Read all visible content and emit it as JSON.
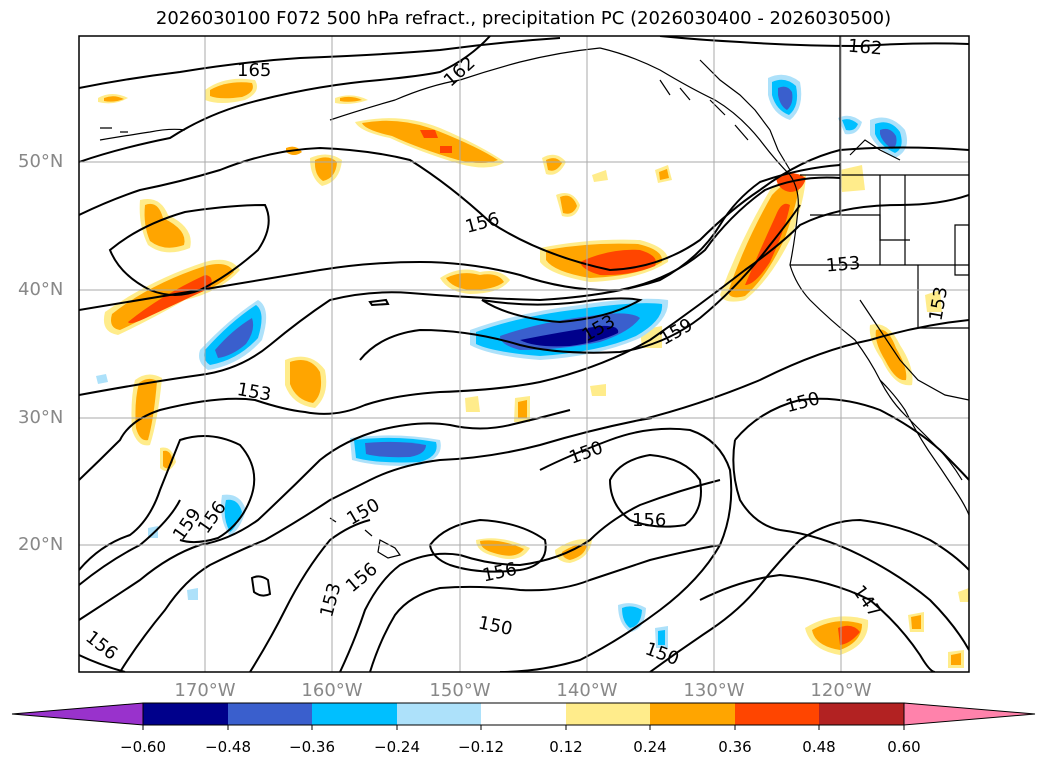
{
  "title": "2026030100 F072 500 hPa refract., precipitation PC (2026030400 - 2026030500)",
  "lat_labels": [
    "50°N",
    "40°N",
    "30°N",
    "20°N"
  ],
  "lon_labels": [
    "170°W",
    "160°W",
    "150°W",
    "140°W",
    "130°W",
    "120°W"
  ],
  "contour_labels": [
    "165",
    "162",
    "162",
    "156",
    "153",
    "153",
    "153",
    "159",
    "153",
    "150",
    "150",
    "150",
    "159",
    "156",
    "156",
    "156",
    "153",
    "156",
    "150",
    "150",
    "147",
    "156"
  ],
  "colorbar": {
    "ticks": [
      "−0.60",
      "−0.48",
      "−0.36",
      "−0.24",
      "−0.12",
      "0.12",
      "0.24",
      "0.36",
      "0.48",
      "0.60"
    ],
    "colors": [
      "#9932CC",
      "#00008B",
      "#3A5FCD",
      "#00BFFF",
      "#ADE1FA",
      "#FFFFFF",
      "#FFEC8B",
      "#FFA500",
      "#FF4500",
      "#B22222",
      "#FF82AB"
    ]
  },
  "palette": {
    "grid": "#aaaaaa",
    "contour": "#000000",
    "axis_label": "#888888"
  }
}
